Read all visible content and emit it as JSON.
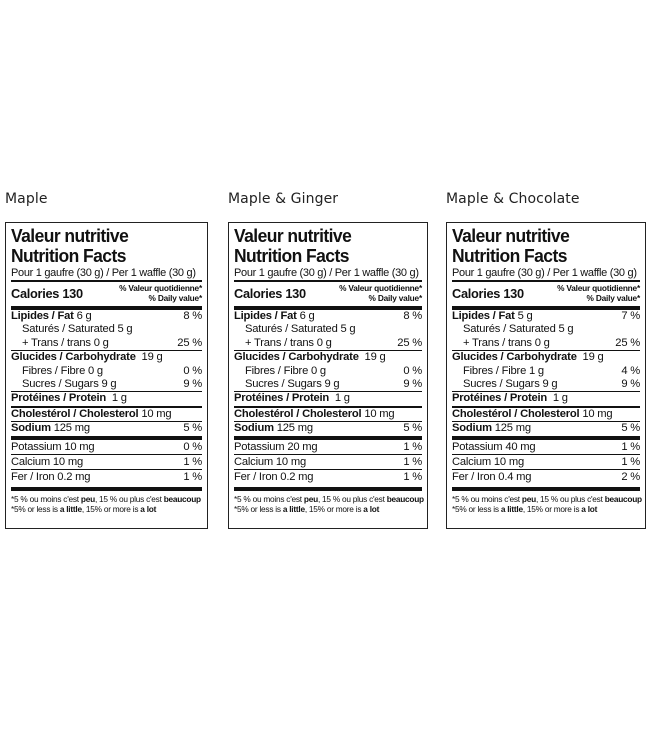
{
  "labels": [
    {
      "variant": "Maple",
      "title_fr": "Valeur nutritive",
      "title_en": "Nutrition Facts",
      "serving": "Pour 1 gaufre (30 g) / Per 1 waffle (30 g)",
      "calories": "Calories 130",
      "dv_fr": "% Valeur quotidienne*",
      "dv_en": "% Daily value*",
      "fat_label": "Lipides / Fat",
      "fat_amt": "6 g",
      "fat_pct": "8 %",
      "sat": "Saturés / Saturated 5 g",
      "trans": "+ Trans / trans 0 g",
      "sat_trans_pct": "25 %",
      "carb_label": "Glucides / Carbohydrate",
      "carb_amt": "19 g",
      "fibre": "Fibres / Fibre 0 g",
      "fibre_pct": "0 %",
      "sugars": "Sucres / Sugars 9 g",
      "sugars_pct": "9 %",
      "protein_label": "Protéines / Protein",
      "protein_amt": "1 g",
      "chol_label": "Cholestérol / Cholesterol",
      "chol_amt": "10 mg",
      "sodium_label": "Sodium",
      "sodium_amt": "125 mg",
      "sodium_pct": "5 %",
      "potassium": "Potassium 10 mg",
      "potassium_pct": "0 %",
      "calcium": "Calcium 10 mg",
      "calcium_pct": "1 %",
      "iron": "Fer / Iron 0.2 mg",
      "iron_pct": "1 %",
      "foot1_a": "*5 % ou moins c'est ",
      "foot1_b": "peu",
      "foot1_c": ", 15 % ou plus c'est ",
      "foot1_d": "beaucoup",
      "foot2_a": "*5% or less is ",
      "foot2_b": "a little",
      "foot2_c": ", 15% or more is ",
      "foot2_d": "a lot"
    },
    {
      "variant": "Maple & Ginger",
      "title_fr": "Valeur nutritive",
      "title_en": "Nutrition Facts",
      "serving": "Pour 1 gaufre (30 g) / Per 1 waffle (30 g)",
      "calories": "Calories 130",
      "dv_fr": "% Valeur quotidienne*",
      "dv_en": "% Daily value*",
      "fat_label": "Lipides / Fat",
      "fat_amt": "6 g",
      "fat_pct": "8 %",
      "sat": "Saturés / Saturated 5 g",
      "trans": "+ Trans / trans 0 g",
      "sat_trans_pct": "25 %",
      "carb_label": "Glucides / Carbohydrate",
      "carb_amt": "19 g",
      "fibre": "Fibres / Fibre  0 g",
      "fibre_pct": "0 %",
      "sugars": "Sucres / Sugars 9 g",
      "sugars_pct": "9 %",
      "protein_label": "Protéines / Protein",
      "protein_amt": "1 g",
      "chol_label": "Cholestérol / Cholesterol",
      "chol_amt": "10 mg",
      "sodium_label": "Sodium",
      "sodium_amt": "125 mg",
      "sodium_pct": "5 %",
      "potassium": "Potassium 20 mg",
      "potassium_pct": "1 %",
      "calcium": "Calcium 10 mg",
      "calcium_pct": "1 %",
      "iron": "Fer / Iron 0.2 mg",
      "iron_pct": "1 %",
      "foot1_a": "*5 % ou moins c'est ",
      "foot1_b": "peu",
      "foot1_c": ", 15 % ou plus c'est ",
      "foot1_d": "beaucoup",
      "foot2_a": "*5% or less is ",
      "foot2_b": "a little",
      "foot2_c": ", 15% or more is ",
      "foot2_d": "a lot"
    },
    {
      "variant": "Maple & Chocolate",
      "title_fr": "Valeur nutritive",
      "title_en": "Nutrition Facts",
      "serving": "Pour 1 gaufre (30 g) / Per 1 waffle (30 g)",
      "calories": "Calories 130",
      "dv_fr": "% Valeur quotidienne*",
      "dv_en": "% Daily value*",
      "fat_label": "Lipides / Fat",
      "fat_amt": "5 g",
      "fat_pct": "7 %",
      "sat": "Saturés / Saturated 5 g",
      "trans": "+ Trans / trans 0 g",
      "sat_trans_pct": "25 %",
      "carb_label": "Glucides / Carbohydrate",
      "carb_amt": "19 g",
      "fibre": "Fibres / Fibre 1 g",
      "fibre_pct": "4 %",
      "sugars": "Sucres / Sugars 9 g",
      "sugars_pct": "9 %",
      "protein_label": "Protéines / Protein",
      "protein_amt": "1 g",
      "chol_label": "Cholestérol / Cholesterol",
      "chol_amt": "10 mg",
      "sodium_label": "Sodium",
      "sodium_amt": "125 mg",
      "sodium_pct": "5 %",
      "potassium": "Potassium 40 mg",
      "potassium_pct": "1 %",
      "calcium": "Calcium 10 mg",
      "calcium_pct": "1 %",
      "iron": "Fer / Iron 0.4 mg",
      "iron_pct": "2 %",
      "foot1_a": "*5 % ou moins c'est ",
      "foot1_b": "peu",
      "foot1_c": ", 15 % ou plus c'est ",
      "foot1_d": "beaucoup",
      "foot2_a": "*5% or less is ",
      "foot2_b": "a little",
      "foot2_c": ", 15% or more is ",
      "foot2_d": "a lot"
    }
  ]
}
